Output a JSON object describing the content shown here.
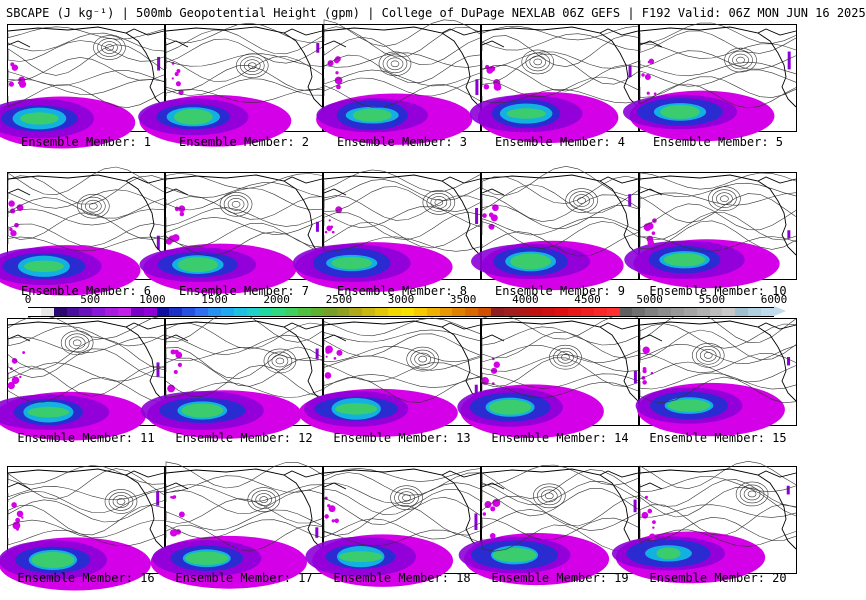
{
  "header": {
    "title": "SBCAPE (J kg⁻¹) | 500mb Geopotential Height (gpm) | College of DuPage NEXLAB 06Z GEFS | F192 Valid: 06Z MON JUN 16 2025"
  },
  "colorbar": {
    "labels": [
      "0",
      "500",
      "1000",
      "1500",
      "2000",
      "2500",
      "3000",
      "3500",
      "4000",
      "4500",
      "5000",
      "5500",
      "6000"
    ],
    "colors": [
      "#ffffff",
      "#e8e8e8",
      "#2a0a6e",
      "#4b0f9e",
      "#6a14c0",
      "#8a18d8",
      "#a81ce0",
      "#c020e8",
      "#7a00c8",
      "#9000d8",
      "#1010a0",
      "#1c30c8",
      "#2850e0",
      "#3070f0",
      "#2890f0",
      "#20a8f0",
      "#20c0e0",
      "#20d0c8",
      "#20d8a0",
      "#30d880",
      "#40d060",
      "#50c040",
      "#60b030",
      "#78a028",
      "#90a020",
      "#b0a818",
      "#c8b810",
      "#e0c808",
      "#f0d800",
      "#f8e000",
      "#f8c800",
      "#f0b000",
      "#e89800",
      "#e08000",
      "#d86800",
      "#d05000",
      "#902020",
      "#a02020",
      "#b01818",
      "#c01010",
      "#d01010",
      "#e01010",
      "#e81818",
      "#f02020",
      "#f82828",
      "#ff3030",
      "#606060",
      "#707070",
      "#808080",
      "#8c8c8c",
      "#989898",
      "#a4a4a4",
      "#b0b0b0",
      "#bcbcbc",
      "#c8c8c8",
      "#a0c0d0",
      "#b0d0e0",
      "#c0dcec"
    ]
  },
  "palette": {
    "magenta": "#d400e8",
    "purple": "#8c00d8",
    "blue": "#2030d0",
    "cyan": "#10c0e0",
    "green": "#40d060"
  },
  "members": [
    {
      "label": "Ensemble Member: 1"
    },
    {
      "label": "Ensemble Member: 2"
    },
    {
      "label": "Ensemble Member: 3"
    },
    {
      "label": "Ensemble Member: 4"
    },
    {
      "label": "Ensemble Member: 5"
    },
    {
      "label": "Ensemble Member: 6"
    },
    {
      "label": "Ensemble Member: 7"
    },
    {
      "label": "Ensemble Member: 8"
    },
    {
      "label": "Ensemble Member: 9"
    },
    {
      "label": "Ensemble Member: 10"
    },
    {
      "label": "Ensemble Member: 11"
    },
    {
      "label": "Ensemble Member: 12"
    },
    {
      "label": "Ensemble Member: 13"
    },
    {
      "label": "Ensemble Member: 14"
    },
    {
      "label": "Ensemble Member: 15"
    },
    {
      "label": "Ensemble Member: 16"
    },
    {
      "label": "Ensemble Member: 17"
    },
    {
      "label": "Ensemble Member: 18"
    },
    {
      "label": "Ensemble Member: 19"
    },
    {
      "label": "Ensemble Member: 20"
    }
  ]
}
